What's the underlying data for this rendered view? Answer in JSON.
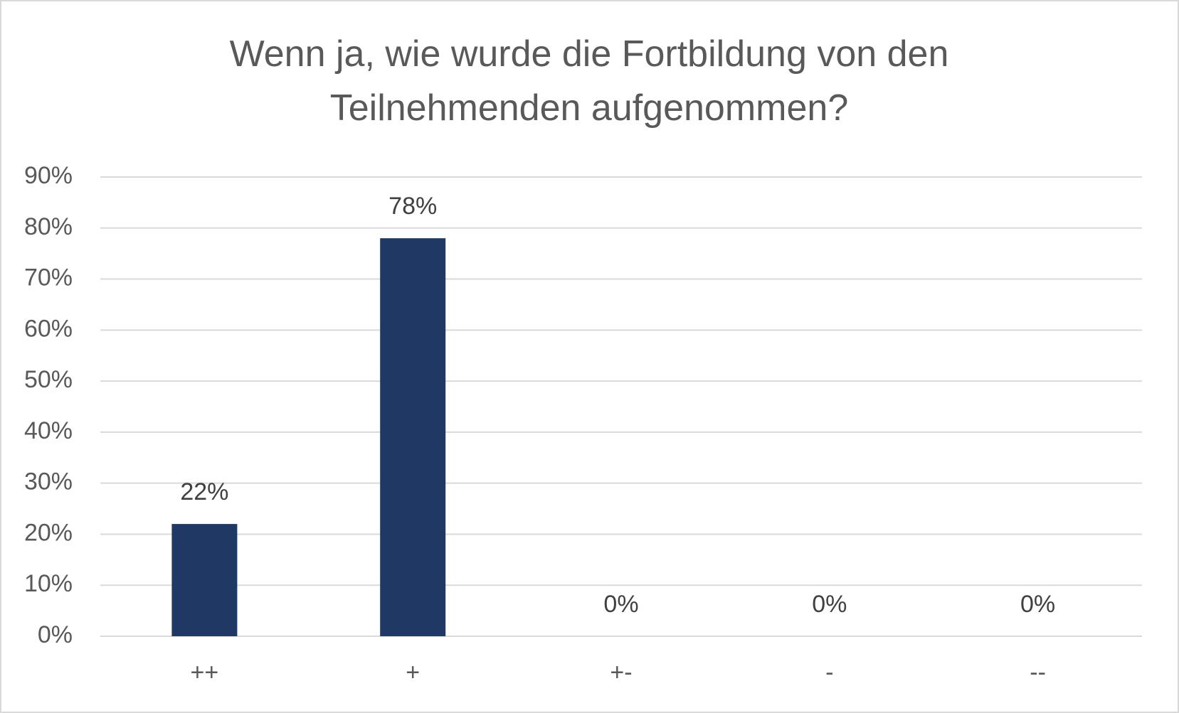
{
  "chart_data": {
    "type": "bar",
    "title": "Wenn ja, wie wurde die Fortbildung von den Teilnehmenden aufgenommen?",
    "categories": [
      "++",
      "+",
      "+-",
      "-",
      "--"
    ],
    "values": [
      22,
      78,
      0,
      0,
      0
    ],
    "value_labels": [
      "22%",
      "78%",
      "0%",
      "0%",
      "0%"
    ],
    "color": "#203864",
    "ylim": [
      0,
      90
    ],
    "yticks": [
      {
        "value": 0,
        "label": "0%"
      },
      {
        "value": 10,
        "label": "10%"
      },
      {
        "value": 20,
        "label": "20%"
      },
      {
        "value": 30,
        "label": "30%"
      },
      {
        "value": 40,
        "label": "40%"
      },
      {
        "value": 50,
        "label": "50%"
      },
      {
        "value": 60,
        "label": "60%"
      },
      {
        "value": 70,
        "label": "70%"
      },
      {
        "value": 80,
        "label": "80%"
      },
      {
        "value": 90,
        "label": "90%"
      }
    ],
    "grid": true
  }
}
